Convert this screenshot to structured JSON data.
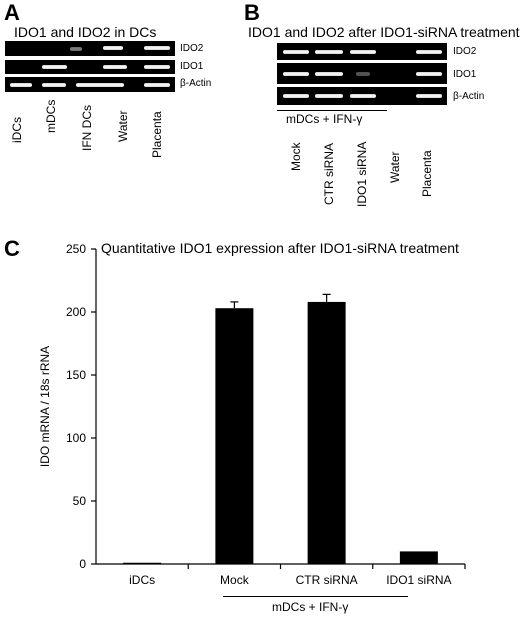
{
  "panel_a": {
    "letter": "A",
    "title": "IDO1 and IDO2 in DCs",
    "rows": [
      "IDO2",
      "IDO1",
      "β-Actin"
    ],
    "lanes": [
      "iDCs",
      "mDCs",
      "IFN DCs",
      "Water",
      "Placenta"
    ]
  },
  "panel_b": {
    "letter": "B",
    "title": "IDO1 and IDO2 after IDO1-siRNA treatment",
    "rows": [
      "IDO2",
      "IDO1",
      "β-Actin"
    ],
    "group_label": "mDCs + IFN-γ",
    "lanes": [
      "Mock",
      "CTR siRNA",
      "IDO1 siRNA",
      "Water",
      "Placenta"
    ]
  },
  "panel_c": {
    "letter": "C",
    "group_label": "mDCs + IFN-γ"
  },
  "chart_data": {
    "type": "bar",
    "title": "Quantitative IDO1 expression after IDO1-siRNA treatment",
    "xlabel": "",
    "ylabel": "IDO mRNA / 18s rRNA",
    "categories": [
      "iDCs",
      "Mock",
      "CTR siRNA",
      "IDO1 siRNA"
    ],
    "values": [
      1,
      203,
      208,
      10
    ],
    "errors": [
      0,
      5,
      6,
      0.5
    ],
    "ylim": [
      0,
      250
    ],
    "yticks": [
      0,
      50,
      100,
      150,
      200,
      250
    ],
    "bar_color": "#000000",
    "grid": false
  }
}
